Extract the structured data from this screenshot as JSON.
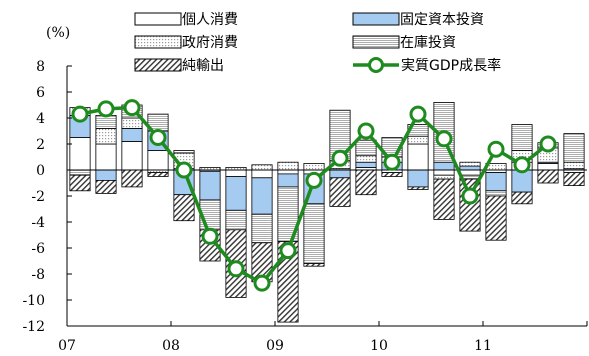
{
  "chart_data": {
    "type": "bar",
    "subtype": "stacked bar with line overlay",
    "title": "",
    "xlabel": "",
    "ylabel": "(%)",
    "ylim": [
      -12,
      8
    ],
    "yticks": [
      8,
      6,
      4,
      2,
      0,
      -2,
      -4,
      -6,
      -8,
      -10,
      -12
    ],
    "year_labels": [
      "07",
      "08",
      "09",
      "10",
      "11"
    ],
    "categories": [
      "07Q1",
      "07Q2",
      "07Q3",
      "07Q4",
      "08Q1",
      "08Q2",
      "08Q3",
      "08Q4",
      "09Q1",
      "09Q2",
      "09Q3",
      "09Q4",
      "10Q1",
      "10Q2",
      "10Q3",
      "10Q4",
      "11Q1",
      "11Q2",
      "11Q3",
      "11Q4"
    ],
    "series": [
      {
        "name": "個人消費",
        "pattern": "white",
        "color": "#ffffff",
        "values": [
          2.5,
          2.0,
          2.2,
          1.5,
          0.1,
          -0.1,
          -0.5,
          -0.6,
          -0.3,
          -0.3,
          0.1,
          0.2,
          -0.2,
          2.0,
          -0.4,
          -0.4,
          -0.2,
          0.6,
          0.5,
          -0.2
        ]
      },
      {
        "name": "固定資本投資",
        "pattern": "blue",
        "color": "#a6cbf0",
        "values": [
          1.7,
          -0.8,
          1.0,
          1.5,
          -1.9,
          -2.2,
          -2.6,
          -2.8,
          -1.0,
          -2.3,
          -0.6,
          0.4,
          0.6,
          -1.3,
          0.6,
          0.3,
          -1.4,
          -1.7,
          0.1,
          0.1
        ]
      },
      {
        "name": "政府消費",
        "pattern": "dotted",
        "color": "#dcdcdc",
        "values": [
          0.6,
          1.2,
          0.8,
          -0.2,
          1.2,
          0.2,
          0.2,
          0.4,
          0.6,
          0.5,
          0.6,
          0.5,
          0.4,
          0.6,
          -0.3,
          0.3,
          0.5,
          0.9,
          1.1,
          0.5
        ]
      },
      {
        "name": "在庫投資",
        "pattern": "horizontal lines",
        "color": "#f2f2f2",
        "values": [
          -0.4,
          1.0,
          1.0,
          1.3,
          0.2,
          -2.3,
          -1.5,
          -2.2,
          -4.2,
          -4.6,
          3.9,
          1.2,
          1.5,
          0.9,
          4.6,
          -0.3,
          -0.4,
          2.0,
          0.4,
          2.2
        ]
      },
      {
        "name": "純輸出",
        "pattern": "diagonal hatch",
        "color": "#ffffff",
        "values": [
          -1.2,
          -1.0,
          -1.3,
          -0.3,
          -2.0,
          -2.4,
          -5.2,
          -3.0,
          -6.2,
          -0.2,
          -2.2,
          -1.9,
          -0.3,
          -0.2,
          -3.1,
          -4.0,
          -3.4,
          -0.9,
          -1.0,
          -1.0
        ]
      },
      {
        "name": "実質GDP成長率",
        "type": "line",
        "color": "#1e8b1e",
        "values": [
          4.3,
          4.7,
          4.8,
          2.5,
          0.0,
          -5.1,
          -7.6,
          -8.7,
          -6.2,
          -0.8,
          0.9,
          3.0,
          0.6,
          4.3,
          2.4,
          -2.0,
          1.6,
          0.4,
          2.0,
          null
        ]
      }
    ],
    "legend": {
      "placement": "top",
      "columns": 2
    },
    "grid": false
  }
}
